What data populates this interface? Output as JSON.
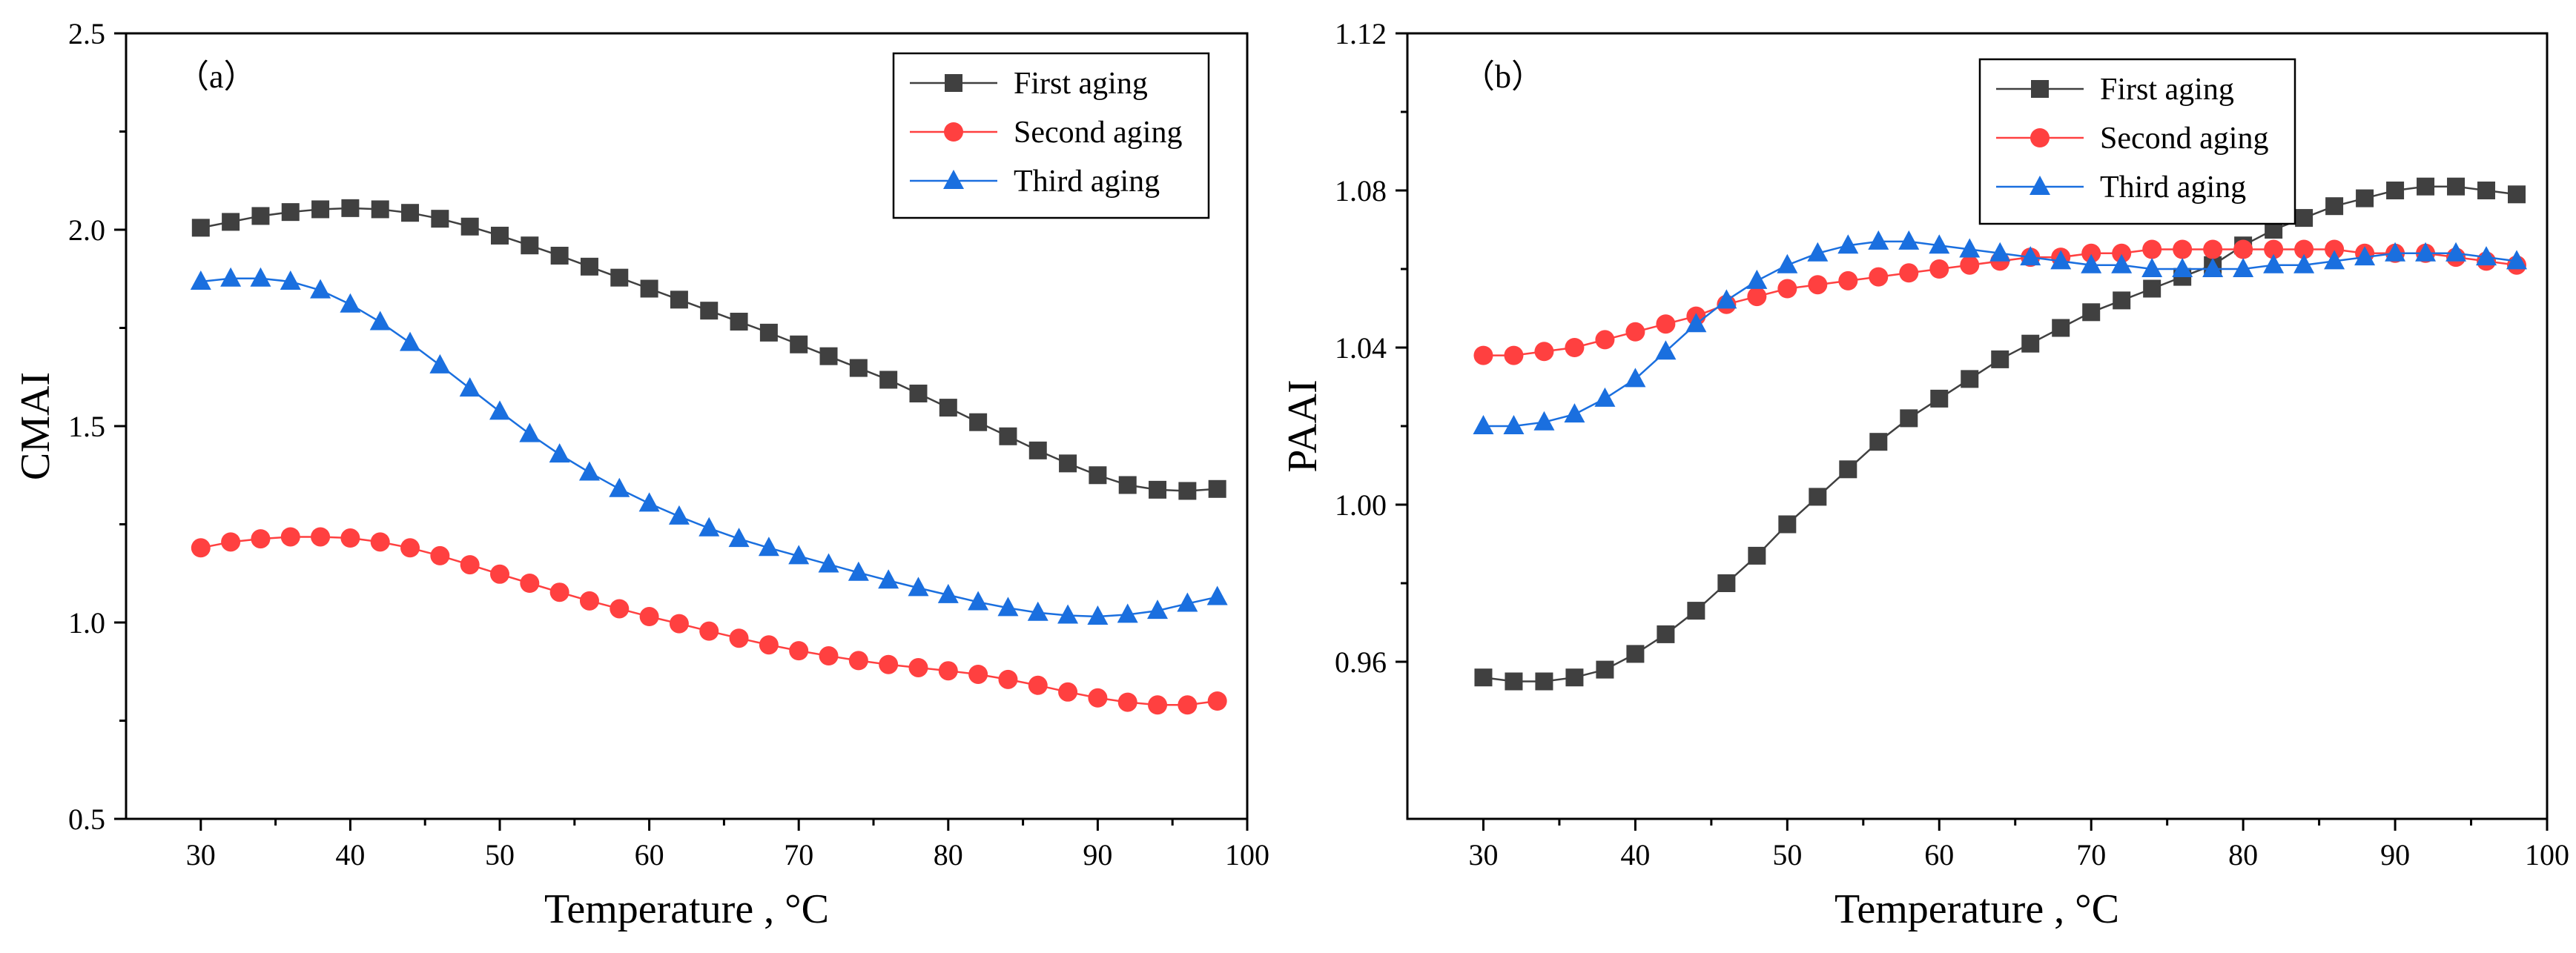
{
  "chart_data": [
    {
      "panel_label": "（a）",
      "type": "line",
      "ylabel": "CMAI",
      "xlabel": "Temperature , °C",
      "xlim": [
        25,
        100
      ],
      "ylim": [
        0.5,
        2.5
      ],
      "xticks": [
        30,
        40,
        50,
        60,
        70,
        80,
        90,
        100
      ],
      "yticks": [
        0.5,
        1.0,
        1.5,
        2.0,
        2.5
      ],
      "ytick_labels": [
        "0.5",
        "1.0",
        "1.5",
        "2.0",
        "2.5"
      ],
      "legend_position": "top-right",
      "x": [
        30,
        32,
        34,
        36,
        38,
        40,
        42,
        44,
        46,
        48,
        50,
        52,
        54,
        56,
        58,
        60,
        62,
        64,
        66,
        68,
        70,
        72,
        74,
        76,
        78,
        80,
        82,
        84,
        86,
        88,
        90,
        92,
        94,
        96,
        98
      ],
      "series": [
        {
          "name": "First aging",
          "color": "#404040",
          "marker": "square",
          "values": [
            2.005,
            2.02,
            2.035,
            2.045,
            2.052,
            2.055,
            2.052,
            2.043,
            2.028,
            2.008,
            1.985,
            1.96,
            1.934,
            1.906,
            1.878,
            1.85,
            1.822,
            1.794,
            1.766,
            1.738,
            1.708,
            1.678,
            1.648,
            1.618,
            1.583,
            1.547,
            1.51,
            1.474,
            1.438,
            1.405,
            1.375,
            1.35,
            1.338,
            1.335,
            1.34
          ]
        },
        {
          "name": "Second aging",
          "color": "#ff4040",
          "marker": "circle",
          "values": [
            1.19,
            1.205,
            1.213,
            1.218,
            1.218,
            1.215,
            1.205,
            1.19,
            1.17,
            1.147,
            1.123,
            1.1,
            1.077,
            1.055,
            1.035,
            1.015,
            0.997,
            0.978,
            0.96,
            0.943,
            0.928,
            0.915,
            0.903,
            0.893,
            0.885,
            0.877,
            0.868,
            0.855,
            0.84,
            0.823,
            0.808,
            0.797,
            0.79,
            0.79,
            0.8
          ]
        },
        {
          "name": "Third aging",
          "color": "#1a6fdf",
          "marker": "triangle",
          "values": [
            1.868,
            1.876,
            1.876,
            1.868,
            1.846,
            1.81,
            1.765,
            1.712,
            1.655,
            1.596,
            1.537,
            1.48,
            1.428,
            1.382,
            1.34,
            1.303,
            1.27,
            1.24,
            1.213,
            1.19,
            1.169,
            1.148,
            1.127,
            1.107,
            1.088,
            1.07,
            1.052,
            1.037,
            1.025,
            1.018,
            1.015,
            1.02,
            1.03,
            1.048,
            1.065
          ]
        }
      ]
    },
    {
      "panel_label": "（b）",
      "type": "line",
      "ylabel": "PAAI",
      "xlabel": "Temperature , °C",
      "xlim": [
        25,
        100
      ],
      "ylim": [
        0.92,
        1.12
      ],
      "xticks": [
        30,
        40,
        50,
        60,
        70,
        80,
        90,
        100
      ],
      "yticks": [
        0.96,
        1.0,
        1.04,
        1.08,
        1.12
      ],
      "ytick_labels": [
        "0.96",
        "1.00",
        "1.04",
        "1.08",
        "1.12"
      ],
      "legend_position": "top-right",
      "x": [
        30,
        32,
        34,
        36,
        38,
        40,
        42,
        44,
        46,
        48,
        50,
        52,
        54,
        56,
        58,
        60,
        62,
        64,
        66,
        68,
        70,
        72,
        74,
        76,
        78,
        80,
        82,
        84,
        86,
        88,
        90,
        92,
        94,
        96,
        98
      ],
      "series": [
        {
          "name": "First aging",
          "color": "#404040",
          "marker": "square",
          "values": [
            0.956,
            0.955,
            0.955,
            0.956,
            0.958,
            0.962,
            0.967,
            0.973,
            0.98,
            0.987,
            0.995,
            1.002,
            1.009,
            1.016,
            1.022,
            1.027,
            1.032,
            1.037,
            1.041,
            1.045,
            1.049,
            1.052,
            1.055,
            1.058,
            1.061,
            1.066,
            1.07,
            1.073,
            1.076,
            1.078,
            1.08,
            1.081,
            1.081,
            1.08,
            1.079
          ]
        },
        {
          "name": "Second aging",
          "color": "#ff4040",
          "marker": "circle",
          "values": [
            1.038,
            1.038,
            1.039,
            1.04,
            1.042,
            1.044,
            1.046,
            1.048,
            1.051,
            1.053,
            1.055,
            1.056,
            1.057,
            1.058,
            1.059,
            1.06,
            1.061,
            1.062,
            1.063,
            1.063,
            1.064,
            1.064,
            1.065,
            1.065,
            1.065,
            1.065,
            1.065,
            1.065,
            1.065,
            1.064,
            1.064,
            1.064,
            1.063,
            1.062,
            1.061
          ]
        },
        {
          "name": "Third aging",
          "color": "#1a6fdf",
          "marker": "triangle",
          "values": [
            1.02,
            1.02,
            1.021,
            1.023,
            1.027,
            1.032,
            1.039,
            1.046,
            1.052,
            1.057,
            1.061,
            1.064,
            1.066,
            1.067,
            1.067,
            1.066,
            1.065,
            1.064,
            1.063,
            1.062,
            1.061,
            1.061,
            1.06,
            1.06,
            1.06,
            1.06,
            1.061,
            1.061,
            1.062,
            1.063,
            1.064,
            1.064,
            1.064,
            1.063,
            1.062
          ]
        }
      ]
    }
  ]
}
